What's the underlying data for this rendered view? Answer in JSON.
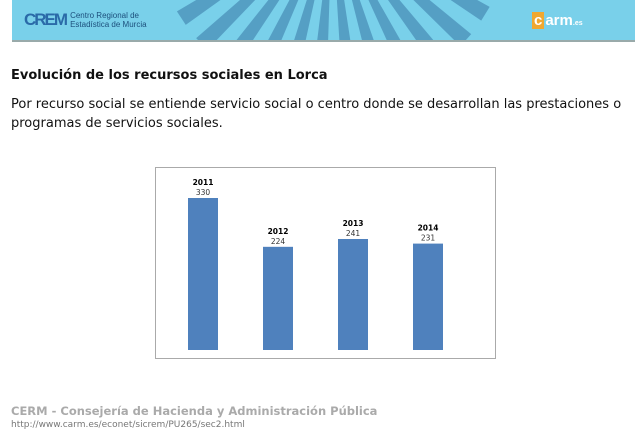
{
  "header": {
    "logo_mark": "CREM",
    "logo_text_line1": "Centro Regional de",
    "logo_text_line2": "Estadística de Murcia",
    "carm_logo": "carm.es"
  },
  "title": "Evolución de los recursos sociales en Lorca",
  "description": "Por recurso social se entiende servicio social o centro donde se desarrollan las prestaciones o programas de servicios sociales.",
  "chart_data": {
    "type": "bar",
    "categories": [
      "2011",
      "2012",
      "2013",
      "2014"
    ],
    "values": [
      330,
      224,
      241,
      231
    ],
    "title": "",
    "xlabel": "",
    "ylabel": "",
    "ylim": [
      0,
      330
    ],
    "grid": false,
    "colors": {
      "bar": "#4f81bd"
    }
  },
  "footer": {
    "title": "CERM - Consejería de Hacienda y Administración Pública",
    "url": "http://www.carm.es/econet/sicrem/PU265/sec2.html"
  }
}
